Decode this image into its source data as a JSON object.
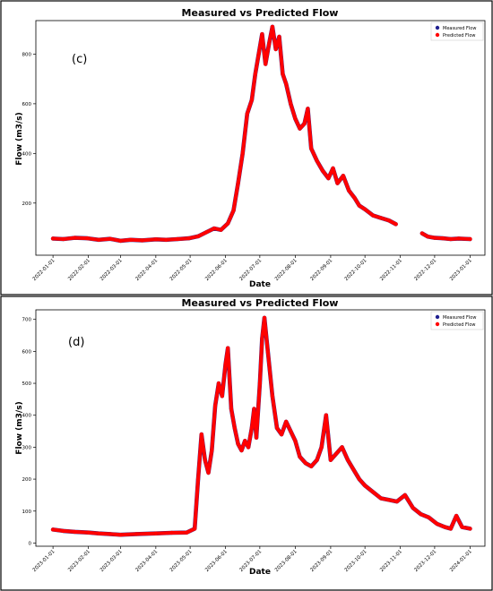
{
  "chart_data": [
    {
      "type": "scatter",
      "panel_label": "(c)",
      "title": "Measured vs Predicted Flow",
      "xlabel": "Date",
      "ylabel": "Flow  (m3/s)",
      "xlim": [
        "2021-12-17",
        "2023-01-14"
      ],
      "ylim": [
        -10,
        935
      ],
      "yticks": [
        200,
        400,
        600,
        800
      ],
      "xticks": [
        "2022-01-01",
        "2022-02-01",
        "2022-03-01",
        "2022-04-01",
        "2022-05-01",
        "2022-06-01",
        "2022-07-01",
        "2022-08-01",
        "2022-09-01",
        "2022-10-01",
        "2022-11-01",
        "2022-12-01",
        "2023-01-01"
      ],
      "legend": [
        "Measured Flow",
        "Predicted Flow"
      ],
      "legend_position": "top-right",
      "colors": {
        "measured": "#1f1f8f",
        "predicted": "#ff0000"
      },
      "series": [
        {
          "name": "Predicted Flow",
          "points": [
            [
              "2022-01-01",
              57
            ],
            [
              "2022-01-10",
              55
            ],
            [
              "2022-01-20",
              60
            ],
            [
              "2022-01-31",
              58
            ],
            [
              "2022-02-10",
              52
            ],
            [
              "2022-02-20",
              56
            ],
            [
              "2022-03-01",
              48
            ],
            [
              "2022-03-10",
              52
            ],
            [
              "2022-03-20",
              50
            ],
            [
              "2022-04-01",
              54
            ],
            [
              "2022-04-10",
              52
            ],
            [
              "2022-04-20",
              55
            ],
            [
              "2022-04-30",
              58
            ],
            [
              "2022-05-08",
              66
            ],
            [
              "2022-05-15",
              82
            ],
            [
              "2022-05-22",
              98
            ],
            [
              "2022-05-28",
              92
            ],
            [
              "2022-06-03",
              118
            ],
            [
              "2022-06-08",
              170
            ],
            [
              "2022-06-12",
              280
            ],
            [
              "2022-06-16",
              400
            ],
            [
              "2022-06-20",
              560
            ],
            [
              "2022-06-24",
              615
            ],
            [
              "2022-06-27",
              720
            ],
            [
              "2022-06-30",
              800
            ],
            [
              "2022-07-03",
              880
            ],
            [
              "2022-07-06",
              760
            ],
            [
              "2022-07-09",
              840
            ],
            [
              "2022-07-12",
              910
            ],
            [
              "2022-07-15",
              820
            ],
            [
              "2022-07-18",
              870
            ],
            [
              "2022-07-21",
              720
            ],
            [
              "2022-07-24",
              680
            ],
            [
              "2022-07-28",
              600
            ],
            [
              "2022-08-01",
              540
            ],
            [
              "2022-08-05",
              500
            ],
            [
              "2022-08-09",
              520
            ],
            [
              "2022-08-12",
              580
            ],
            [
              "2022-08-15",
              420
            ],
            [
              "2022-08-20",
              370
            ],
            [
              "2022-08-25",
              330
            ],
            [
              "2022-08-30",
              300
            ],
            [
              "2022-09-03",
              340
            ],
            [
              "2022-09-07",
              280
            ],
            [
              "2022-09-12",
              310
            ],
            [
              "2022-09-17",
              250
            ],
            [
              "2022-09-22",
              220
            ],
            [
              "2022-09-26",
              190
            ],
            [
              "2022-10-01",
              175
            ],
            [
              "2022-10-08",
              150
            ],
            [
              "2022-10-15",
              140
            ],
            [
              "2022-10-22",
              130
            ],
            [
              "2022-10-28",
              115
            ]
          ]
        },
        {
          "name": "Predicted Flow",
          "points": [
            [
              "2022-11-20",
              78
            ],
            [
              "2022-11-25",
              65
            ],
            [
              "2022-12-01",
              60
            ],
            [
              "2022-12-08",
              58
            ],
            [
              "2022-12-15",
              55
            ],
            [
              "2022-12-22",
              57
            ],
            [
              "2023-01-01",
              55
            ]
          ]
        }
      ]
    },
    {
      "type": "scatter",
      "panel_label": "(d)",
      "title": "Measured vs Predicted Flow",
      "xlabel": "Date",
      "ylabel": "Flow  (m3/s)",
      "xlim": [
        "2022-12-17",
        "2024-01-14"
      ],
      "ylim": [
        -10,
        730
      ],
      "yticks": [
        0,
        100,
        200,
        300,
        400,
        500,
        600,
        700
      ],
      "xticks": [
        "2023-01-01",
        "2023-02-01",
        "2023-03-01",
        "2023-04-01",
        "2023-05-01",
        "2023-06-01",
        "2023-07-01",
        "2023-08-01",
        "2023-09-01",
        "2023-10-01",
        "2023-11-01",
        "2023-12-01",
        "2024-01-01"
      ],
      "legend": [
        "Measured Flow",
        "Predicted Flow"
      ],
      "legend_position": "top-right",
      "colors": {
        "measured": "#1f1f8f",
        "predicted": "#ff0000"
      },
      "series": [
        {
          "name": "Predicted Flow",
          "points": [
            [
              "2023-01-01",
              42
            ],
            [
              "2023-01-10",
              38
            ],
            [
              "2023-01-20",
              35
            ],
            [
              "2023-02-01",
              33
            ],
            [
              "2023-02-10",
              30
            ],
            [
              "2023-02-20",
              28
            ],
            [
              "2023-03-01",
              26
            ],
            [
              "2023-03-15",
              28
            ],
            [
              "2023-04-01",
              30
            ],
            [
              "2023-04-15",
              32
            ],
            [
              "2023-04-28",
              33
            ],
            [
              "2023-05-05",
              45
            ],
            [
              "2023-05-08",
              200
            ],
            [
              "2023-05-11",
              340
            ],
            [
              "2023-05-14",
              260
            ],
            [
              "2023-05-17",
              220
            ],
            [
              "2023-05-20",
              290
            ],
            [
              "2023-05-23",
              430
            ],
            [
              "2023-05-26",
              500
            ],
            [
              "2023-05-29",
              460
            ],
            [
              "2023-06-01",
              560
            ],
            [
              "2023-06-03",
              610
            ],
            [
              "2023-06-06",
              420
            ],
            [
              "2023-06-09",
              360
            ],
            [
              "2023-06-12",
              310
            ],
            [
              "2023-06-15",
              290
            ],
            [
              "2023-06-18",
              320
            ],
            [
              "2023-06-21",
              300
            ],
            [
              "2023-06-24",
              360
            ],
            [
              "2023-06-26",
              420
            ],
            [
              "2023-06-28",
              330
            ],
            [
              "2023-07-01",
              500
            ],
            [
              "2023-07-03",
              640
            ],
            [
              "2023-07-05",
              705
            ],
            [
              "2023-07-08",
              600
            ],
            [
              "2023-07-12",
              460
            ],
            [
              "2023-07-16",
              360
            ],
            [
              "2023-07-20",
              340
            ],
            [
              "2023-07-24",
              380
            ],
            [
              "2023-07-28",
              350
            ],
            [
              "2023-08-01",
              320
            ],
            [
              "2023-08-05",
              270
            ],
            [
              "2023-08-10",
              250
            ],
            [
              "2023-08-15",
              240
            ],
            [
              "2023-08-20",
              260
            ],
            [
              "2023-08-24",
              300
            ],
            [
              "2023-08-28",
              400
            ],
            [
              "2023-09-01",
              260
            ],
            [
              "2023-09-06",
              280
            ],
            [
              "2023-09-11",
              300
            ],
            [
              "2023-09-16",
              260
            ],
            [
              "2023-09-21",
              230
            ],
            [
              "2023-09-26",
              200
            ],
            [
              "2023-10-01",
              180
            ],
            [
              "2023-10-08",
              160
            ],
            [
              "2023-10-15",
              140
            ],
            [
              "2023-10-22",
              135
            ],
            [
              "2023-10-29",
              130
            ],
            [
              "2023-11-05",
              150
            ],
            [
              "2023-11-12",
              110
            ],
            [
              "2023-11-19",
              90
            ],
            [
              "2023-11-26",
              80
            ],
            [
              "2023-12-03",
              60
            ],
            [
              "2023-12-10",
              50
            ],
            [
              "2023-12-15",
              45
            ],
            [
              "2023-12-20",
              85
            ],
            [
              "2023-12-25",
              50
            ],
            [
              "2024-01-01",
              45
            ]
          ]
        }
      ]
    }
  ]
}
